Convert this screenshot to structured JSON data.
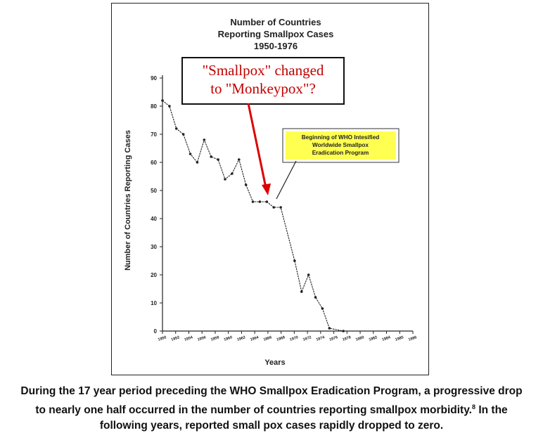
{
  "chart_data": {
    "type": "line",
    "title": [
      "Number of Countries",
      "Reporting Smallpox Cases",
      "1950-1976"
    ],
    "xlabel": "Years",
    "ylabel": "Number of Countries Reporting Cases",
    "ylim": [
      0,
      90
    ],
    "yticks": [
      0,
      10,
      20,
      30,
      40,
      50,
      60,
      70,
      80,
      90
    ],
    "xlim": [
      1950,
      1986
    ],
    "xticks": [
      "1950",
      "1952",
      "1954",
      "1956",
      "1958",
      "1960",
      "1962",
      "1964",
      "1966",
      "1968",
      "1970",
      "1972",
      "1974",
      "1976",
      "1978",
      "1980",
      "1982",
      "1984",
      "1985",
      "1986"
    ],
    "grid": false,
    "x": [
      1950,
      1951,
      1952,
      1953,
      1954,
      1955,
      1956,
      1957,
      1958,
      1959,
      1960,
      1961,
      1962,
      1963,
      1964,
      1965,
      1966,
      1967,
      1969,
      1970,
      1971,
      1972,
      1973,
      1974,
      1976,
      1978,
      1980,
      1982,
      1984,
      1986
    ],
    "y": [
      82,
      80,
      72,
      70,
      63,
      60,
      68,
      62,
      61,
      54,
      56,
      61,
      52,
      46,
      46,
      46,
      44,
      44,
      25,
      14,
      20,
      12,
      8,
      1,
      0,
      0,
      0,
      0,
      0,
      0
    ],
    "annotations": {
      "main_box_lines": [
        "\"Smallpox\" changed",
        "to \"Monkeypox\"?"
      ],
      "who_box_lines": [
        "Beginning of WHO Intesified",
        "Worldwide Smallpox",
        "Eradication Program"
      ]
    },
    "colors": {
      "line": "#222222",
      "arrow": "#dd0000",
      "highlight": "#ffff33",
      "main_box_text": "#c00000"
    }
  },
  "caption": {
    "line1": "During the 17 year period preceding the WHO Smallpox Eradication Program, a progressive drop",
    "line2_pre": "to nearly one half occurred in the number of countries reporting smallpox morbidity.",
    "footnote": "8",
    "line2_post": " In the",
    "line3": "following years, reported small pox cases rapidly dropped to zero."
  }
}
